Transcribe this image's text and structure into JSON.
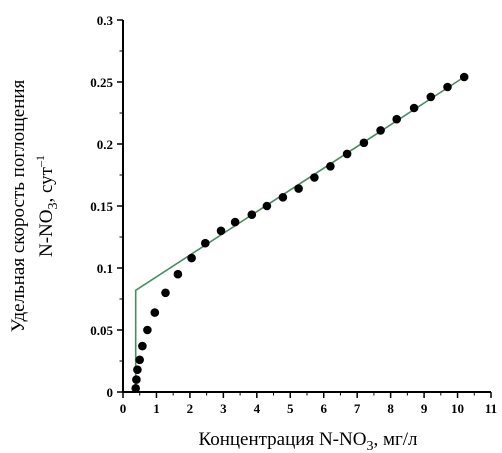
{
  "chart_data": {
    "type": "scatter",
    "xlabel": {
      "main": "Концентрация N-NO",
      "sub": "3",
      "tail": ", мг/л"
    },
    "ylabel": {
      "line1": "Удельная скорость поглощения",
      "line2_main": "N-NO",
      "line2_sub": "3",
      "line2_tail": ", сут",
      "line2_sup": "–1"
    },
    "xlim": [
      0,
      11
    ],
    "ylim": [
      0,
      0.3
    ],
    "xticks": [
      "0",
      "1",
      "2",
      "3",
      "4",
      "5",
      "6",
      "7",
      "8",
      "9",
      "10",
      "11"
    ],
    "yticks": [
      "0",
      "0.05",
      "0.1",
      "0.15",
      "0.2",
      "0.25",
      "0.3"
    ],
    "grid": false,
    "legend": "none",
    "series": [
      {
        "kind": "points",
        "color": "#000000",
        "x": [
          0.38,
          0.4,
          0.43,
          0.5,
          0.58,
          0.73,
          0.95,
          1.27,
          1.64,
          2.05,
          2.46,
          2.93,
          3.35,
          3.85,
          4.3,
          4.78,
          5.25,
          5.72,
          6.2,
          6.7,
          7.2,
          7.7,
          8.18,
          8.7,
          9.2,
          9.7,
          10.2
        ],
        "y": [
          0.003,
          0.01,
          0.018,
          0.026,
          0.037,
          0.05,
          0.064,
          0.08,
          0.095,
          0.108,
          0.12,
          0.13,
          0.137,
          0.143,
          0.15,
          0.157,
          0.164,
          0.173,
          0.182,
          0.192,
          0.201,
          0.211,
          0.22,
          0.229,
          0.238,
          0.246,
          0.254
        ]
      },
      {
        "kind": "line",
        "color": "#4a8c64",
        "x": [
          0.38,
          0.38,
          10.2
        ],
        "y": [
          0,
          0.082,
          0.254
        ]
      }
    ]
  }
}
